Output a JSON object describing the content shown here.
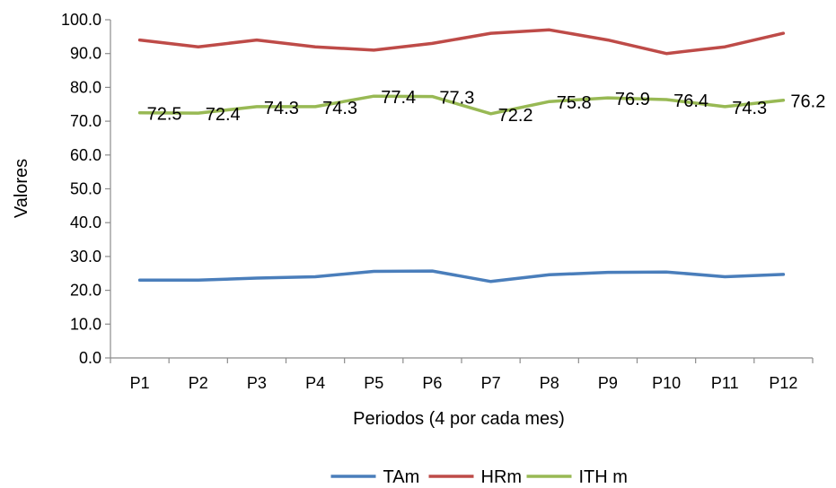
{
  "chart_data": {
    "type": "line",
    "title": "",
    "xlabel": "Periodos (4 por cada mes)",
    "ylabel": "Valores",
    "ylim": [
      0,
      100
    ],
    "yticks": [
      "0.0",
      "10.0",
      "20.0",
      "30.0",
      "40.0",
      "50.0",
      "60.0",
      "70.0",
      "80.0",
      "90.0",
      "100.0"
    ],
    "categories": [
      "P1",
      "P2",
      "P3",
      "P4",
      "P5",
      "P6",
      "P7",
      "P8",
      "P9",
      "P10",
      "P11",
      "P12"
    ],
    "grid": false,
    "legend_position": "bottom",
    "series": [
      {
        "name": "TAm",
        "color": "#4a7ebb",
        "values": [
          23.0,
          23.0,
          23.6,
          24.0,
          25.6,
          25.7,
          22.6,
          24.6,
          25.3,
          25.4,
          24.0,
          24.7
        ],
        "show_labels": false
      },
      {
        "name": "HRm",
        "color": "#be4b48",
        "values": [
          94.0,
          92.0,
          94.0,
          92.0,
          91.0,
          93.0,
          96.0,
          97.0,
          94.0,
          90.0,
          92.0,
          96.0
        ],
        "show_labels": false
      },
      {
        "name": "ITH m",
        "color": "#98b954",
        "values": [
          72.5,
          72.4,
          74.3,
          74.3,
          77.4,
          77.3,
          72.2,
          75.8,
          76.9,
          76.4,
          74.3,
          76.2
        ],
        "labels": [
          "72.5",
          "72.4",
          "74.3",
          "74.3",
          "77.4",
          "77.3",
          "72.2",
          "75.8",
          "76.9",
          "76.4",
          "74.3",
          "76.2"
        ],
        "show_labels": true
      }
    ]
  }
}
